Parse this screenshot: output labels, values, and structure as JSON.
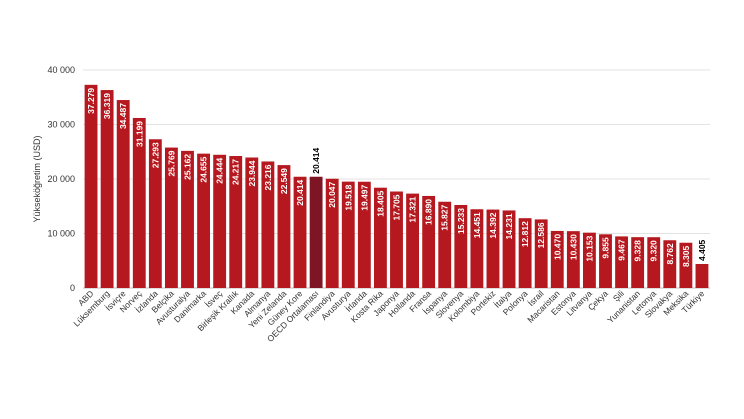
{
  "colors": {
    "bar": "#b5191f",
    "highlight_bar": "#7d1524",
    "grid": "#e3e3e3",
    "inner_label": "#ffffff",
    "outer_label": "#000000"
  },
  "chart_data": {
    "type": "bar",
    "ylabel": "Yükseköğretim (USD)",
    "ylim": [
      0,
      40000
    ],
    "yticks": [
      0,
      10000,
      20000,
      30000,
      40000
    ],
    "ytick_labels": [
      "0",
      "10 000",
      "20 000",
      "30 000",
      "40 000"
    ],
    "grid": true,
    "highlight_category": "OECD Ortalaması",
    "label_outside_categories": [
      "OECD Ortalaması",
      "Türkiye"
    ],
    "categories": [
      "ABD",
      "Lüksemburg",
      "İsviçre",
      "Norveç",
      "İzlanda",
      "Belçika",
      "Avusturalya",
      "Danimarka",
      "İsveç",
      "Birleşik Krallık",
      "Kanada",
      "Almanya",
      "Yeni Zelanda",
      "Güney Kore",
      "OECD Ortalaması",
      "Finlandiya",
      "Avusturya",
      "İrlanda",
      "Kosta Rika",
      "Japonya",
      "Hollanda",
      "Fransa",
      "İspanya",
      "Slovenya",
      "Kolombiya",
      "Portekiz",
      "İtalya",
      "Polonya",
      "İsrail",
      "Macaristan",
      "Estonya",
      "Litvanya",
      "Çekya",
      "Şili",
      "Yunanistan",
      "Letonya",
      "Slovakya",
      "Meksika",
      "Türkiye"
    ],
    "values": [
      37279,
      36319,
      34487,
      31199,
      27293,
      25769,
      25162,
      24655,
      24444,
      24217,
      23944,
      23216,
      22549,
      20414,
      20414,
      20047,
      19518,
      19497,
      18405,
      17705,
      17321,
      16890,
      15827,
      15233,
      14451,
      14392,
      14231,
      12812,
      12586,
      10470,
      10430,
      10153,
      9855,
      9467,
      9328,
      9320,
      8762,
      8305,
      4405
    ],
    "value_labels": [
      "37.279",
      "36.319",
      "34.487",
      "31.199",
      "27.293",
      "25.769",
      "25.162",
      "24.655",
      "24.444",
      "24.217",
      "23.944",
      "23.216",
      "22.549",
      "20.414",
      "20.414",
      "20.047",
      "19.518",
      "19.497",
      "18.405",
      "17.705",
      "17.321",
      "16.890",
      "15.827",
      "15.233",
      "14.451",
      "14.392",
      "14.231",
      "12.812",
      "12.586",
      "10.470",
      "10.430",
      "10.153",
      "9.855",
      "9.467",
      "9.328",
      "9.320",
      "8.762",
      "8.305",
      "4.405"
    ]
  }
}
